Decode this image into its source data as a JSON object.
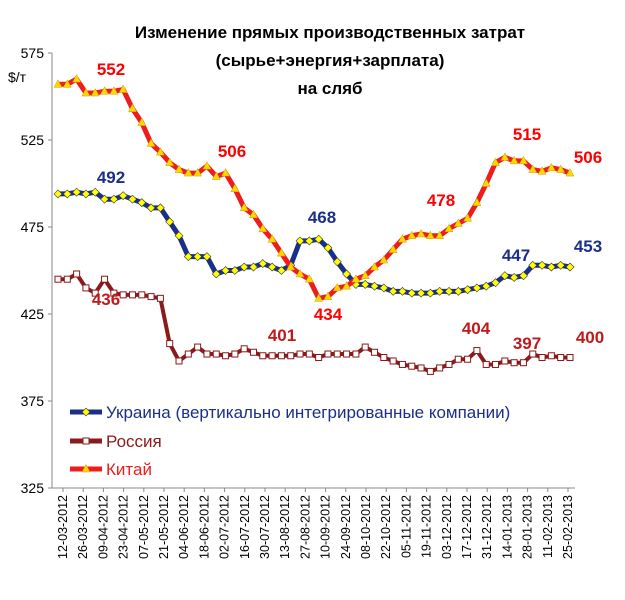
{
  "chart_data": {
    "type": "line",
    "title": [
      "Изменение прямых производственных затрат",
      "(сырье+энергия+зарплата)",
      "на сляб"
    ],
    "ylabel": "$/т",
    "ylim": [
      325,
      575
    ],
    "yticks": [
      325,
      375,
      425,
      475,
      525,
      575
    ],
    "x_tick_labels": [
      "12-03-2012",
      "26-03-2012",
      "09-04-2012",
      "23-04-2012",
      "07-05-2012",
      "21-05-2012",
      "04-06-2012",
      "18-06-2012",
      "02-07-2012",
      "16-07-2012",
      "30-07-2012",
      "13-08-2012",
      "27-08-2012",
      "10-09-2012",
      "24-09-2012",
      "08-10-2012",
      "22-10-2012",
      "05-11-2012",
      "19-11-2012",
      "03-12-2012",
      "17-12-2012",
      "31-12-2012",
      "14-01-2013",
      "28-01-2013",
      "11-02-2013",
      "25-02-2013"
    ],
    "series": [
      {
        "name": "Украина (вертикально интегрированные компании)",
        "color": "#1a2f8a",
        "marker": "diamond",
        "marker_fill": "#ffff00",
        "values": [
          494,
          494,
          495,
          494,
          495,
          491,
          491,
          493,
          491,
          489,
          486,
          486,
          478,
          470,
          458,
          458,
          458,
          448,
          450,
          450,
          452,
          452,
          454,
          452,
          450,
          453,
          467,
          467,
          468,
          463,
          455,
          448,
          442,
          442,
          441,
          440,
          438,
          438,
          437,
          437,
          437,
          438,
          438,
          438,
          439,
          440,
          441,
          443,
          447,
          446,
          447,
          453,
          453,
          452,
          453,
          452
        ]
      },
      {
        "name": "Россия",
        "color": "#8b1a1a",
        "marker": "square",
        "marker_fill": "#ffffff",
        "values": [
          445,
          445,
          448,
          440,
          437,
          445,
          437,
          436,
          436,
          436,
          435,
          434,
          408,
          398,
          402,
          406,
          402,
          402,
          401,
          402,
          405,
          403,
          401,
          401,
          401,
          401,
          402,
          402,
          400,
          402,
          402,
          402,
          402,
          406,
          403,
          400,
          398,
          396,
          395,
          394,
          392,
          394,
          396,
          399,
          399,
          404,
          396,
          396,
          398,
          397,
          397,
          402,
          400,
          401,
          400,
          400
        ]
      },
      {
        "name": "Китай",
        "color": "#ee1c1c",
        "marker": "triangle",
        "marker_fill": "#ffd700",
        "values": [
          557,
          557,
          560,
          552,
          552,
          553,
          553,
          554,
          543,
          535,
          523,
          518,
          512,
          508,
          506,
          506,
          510,
          504,
          506,
          497,
          486,
          482,
          474,
          468,
          460,
          452,
          448,
          445,
          434,
          435,
          440,
          441,
          445,
          447,
          452,
          456,
          462,
          468,
          470,
          471,
          470,
          470,
          474,
          477,
          480,
          489,
          500,
          512,
          515,
          513,
          513,
          508,
          507,
          509,
          508,
          506
        ]
      }
    ],
    "annotations": [
      {
        "text": "492",
        "series": "Украина (вертикально интегрированные компании)"
      },
      {
        "text": "468",
        "series": "Украина (вертикально интегрированные компании)"
      },
      {
        "text": "447",
        "series": "Украина (вертикально интегрированные компании)"
      },
      {
        "text": "453",
        "series": "Украина (вертикально интегрированные компании)"
      },
      {
        "text": "436",
        "series": "Россия"
      },
      {
        "text": "401",
        "series": "Россия"
      },
      {
        "text": "404",
        "series": "Россия"
      },
      {
        "text": "397",
        "series": "Россия"
      },
      {
        "text": "400",
        "series": "Россия"
      },
      {
        "text": "552",
        "series": "Китай"
      },
      {
        "text": "506",
        "series": "Китай"
      },
      {
        "text": "434",
        "series": "Китай"
      },
      {
        "text": "478",
        "series": "Китай"
      },
      {
        "text": "515",
        "series": "Китай"
      },
      {
        "text": "506",
        "series": "Китай"
      }
    ],
    "legend_position": "bottom-left inside plot",
    "grid": false
  }
}
